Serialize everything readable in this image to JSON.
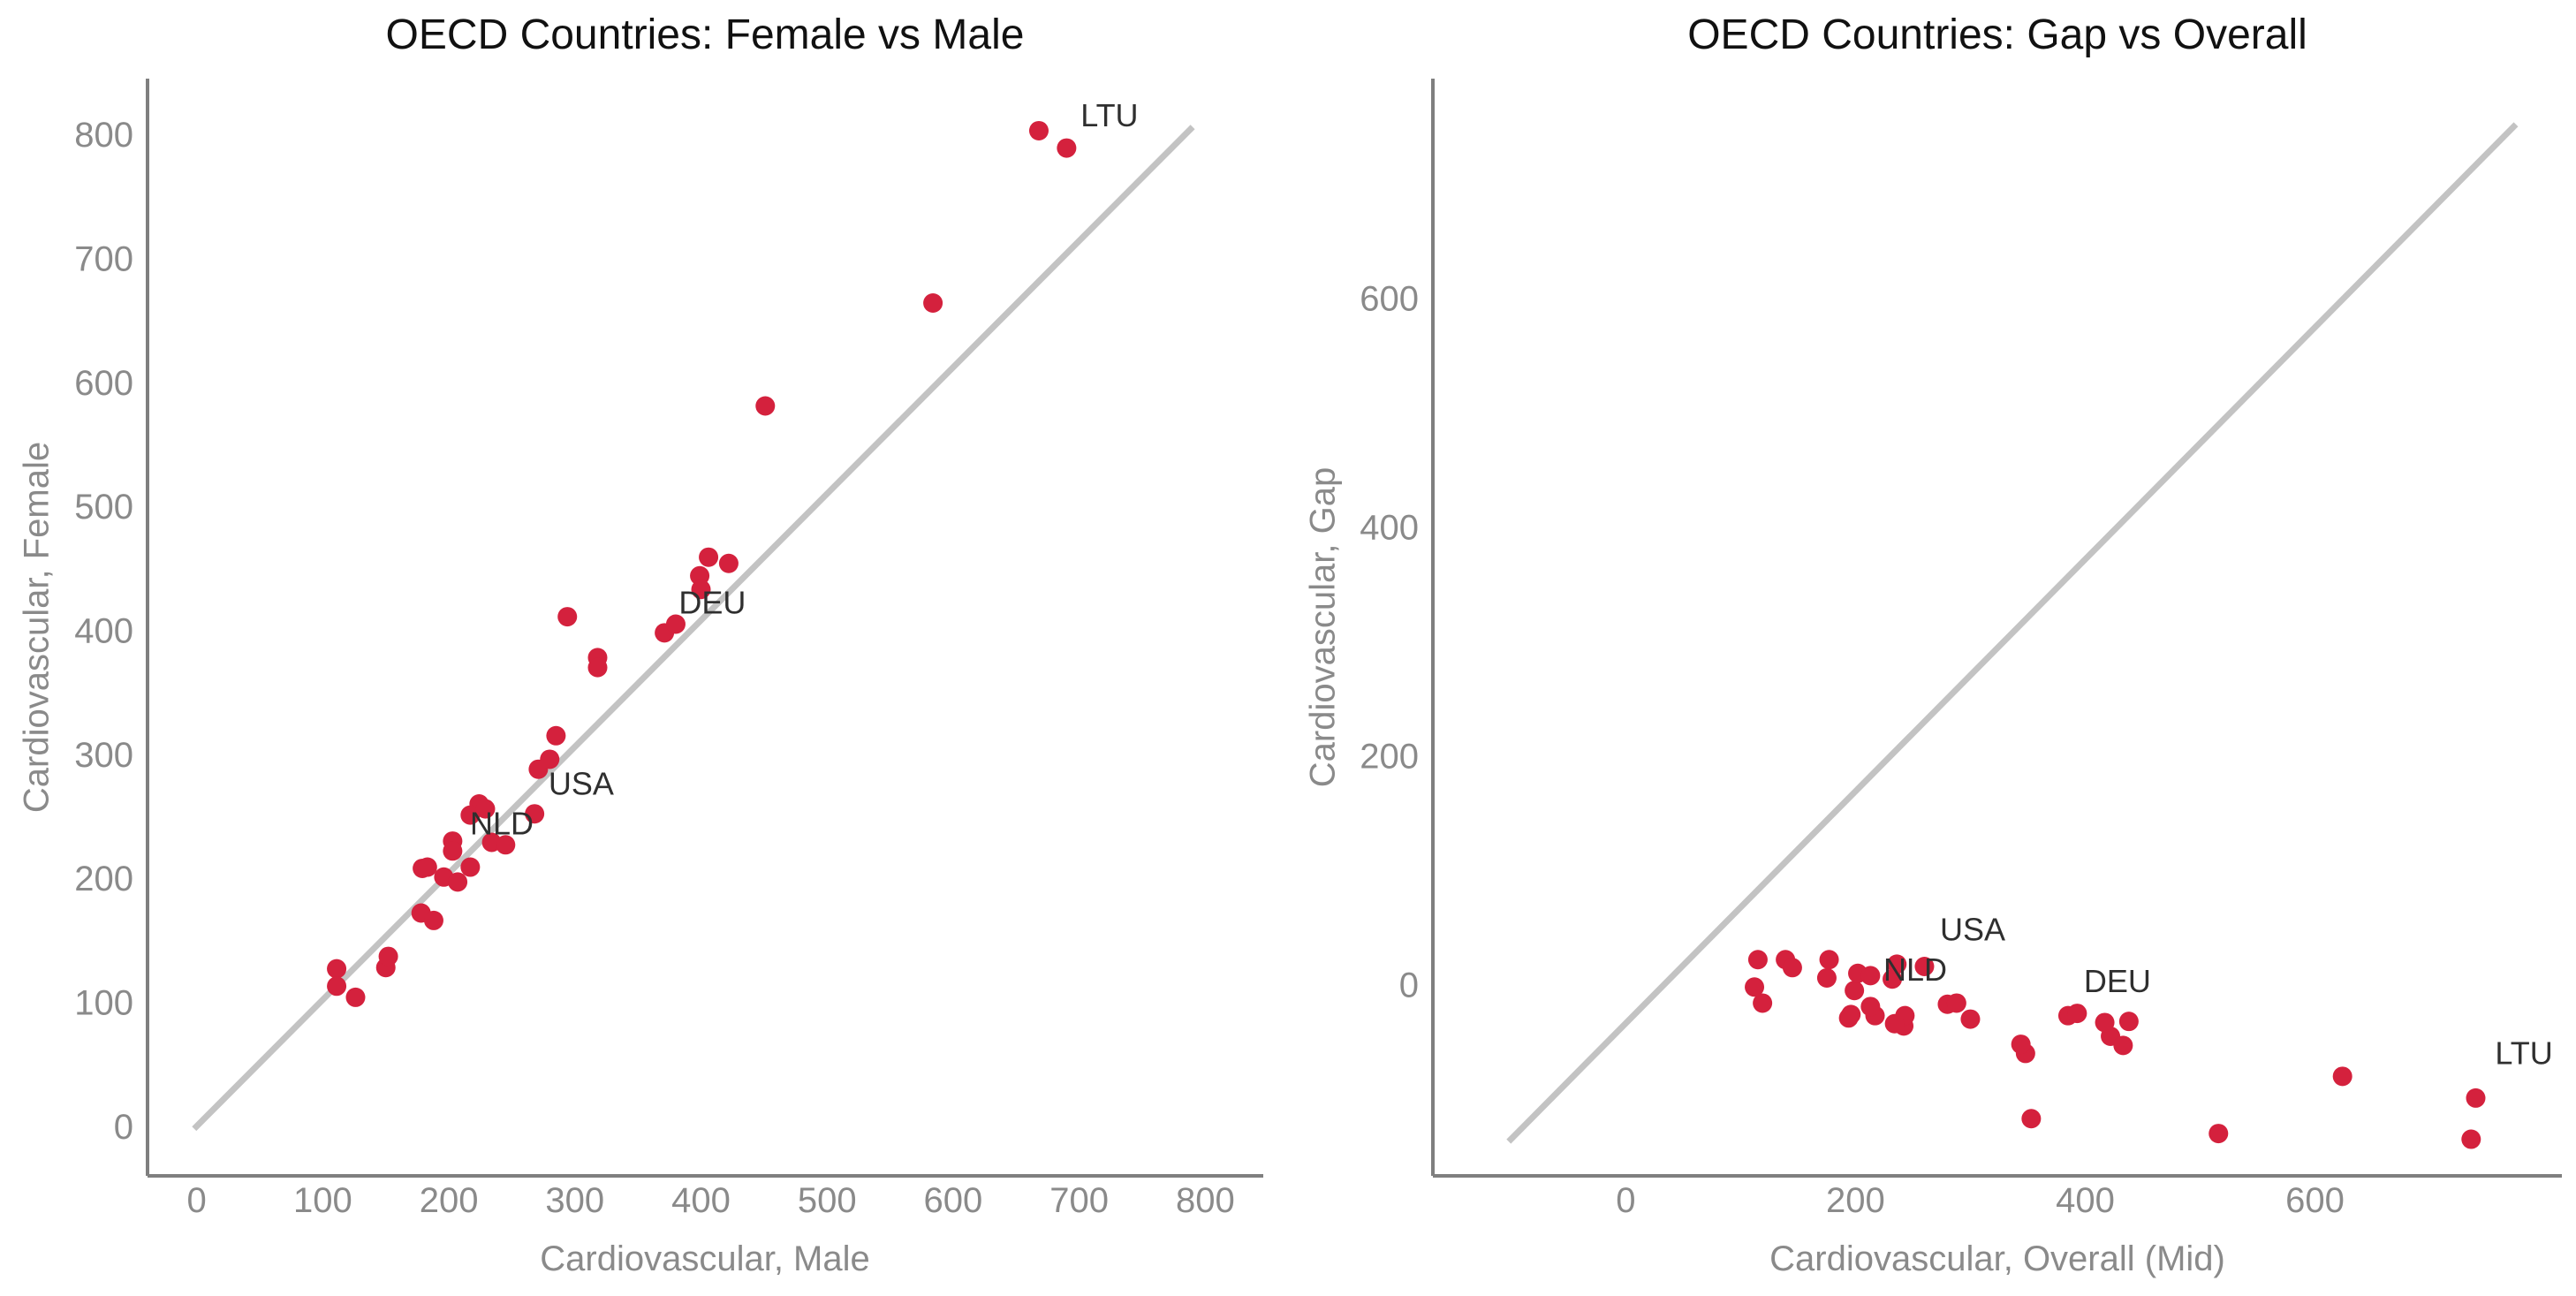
{
  "styles": {
    "point_color": "#d4213d",
    "refline_color": "#c3c3c3",
    "axis_color": "#7f7f7f",
    "tick_label_color": "#8a8a8a",
    "axis_label_color": "#8a8a8a",
    "title_color": "#111111",
    "annotation_color": "#2f2f2f"
  },
  "chart_data": [
    {
      "id": "female-vs-male",
      "type": "scatter",
      "title": "OECD Countries: Female vs Male",
      "xlabel": "Cardiovascular, Male",
      "ylabel": "Cardiovascular, Female",
      "xlim": [
        -39,
        846
      ],
      "ylim": [
        -40,
        845
      ],
      "xticks": [
        0,
        100,
        200,
        300,
        400,
        500,
        600,
        700,
        800
      ],
      "yticks": [
        0,
        100,
        200,
        300,
        400,
        500,
        600,
        700,
        800
      ],
      "grid": false,
      "legend": "none",
      "refline": {
        "x1": -2,
        "y1": -2,
        "x2": 790,
        "y2": 806
      },
      "points": [
        [
          111,
          127
        ],
        [
          111,
          113
        ],
        [
          126,
          104
        ],
        [
          150,
          128
        ],
        [
          152,
          137
        ],
        [
          178,
          172
        ],
        [
          188,
          166
        ],
        [
          179,
          208
        ],
        [
          183,
          209
        ],
        [
          196,
          201
        ],
        [
          207,
          197
        ],
        [
          217,
          209
        ],
        [
          203,
          230
        ],
        [
          203,
          222
        ],
        [
          224,
          260
        ],
        [
          229,
          256
        ],
        [
          217,
          251
        ],
        [
          234,
          229
        ],
        [
          245,
          227
        ],
        [
          268,
          252
        ],
        [
          271,
          288
        ],
        [
          280,
          296
        ],
        [
          285,
          315
        ],
        [
          294,
          411
        ],
        [
          318,
          378
        ],
        [
          318,
          370
        ],
        [
          371,
          398
        ],
        [
          380,
          405
        ],
        [
          399,
          444
        ],
        [
          400,
          433
        ],
        [
          406,
          459
        ],
        [
          422,
          454
        ],
        [
          451,
          581
        ],
        [
          584,
          664
        ],
        [
          668,
          803
        ],
        [
          690,
          789
        ]
      ],
      "annotations": [
        {
          "text": "LTU",
          "x": 724,
          "y": 815
        },
        {
          "text": "DEU",
          "x": 409,
          "y": 422
        },
        {
          "text": "USA",
          "x": 305,
          "y": 276
        },
        {
          "text": "NLD",
          "x": 242,
          "y": 244
        }
      ]
    },
    {
      "id": "gap-vs-overall",
      "type": "scatter",
      "title": "OECD Countries: Gap vs Overall",
      "xlabel": "Cardiovascular, Overall (Mid)",
      "ylabel": "Cardiovascular, Gap",
      "xlim": [
        -168,
        815
      ],
      "ylim": [
        -167,
        792
      ],
      "xticks": [
        0,
        200,
        400,
        600
      ],
      "yticks": [
        0,
        200,
        400,
        600
      ],
      "grid": false,
      "legend": "none",
      "refline": {
        "x1": -102,
        "y1": -137,
        "x2": 775,
        "y2": 752
      },
      "points": [
        [
          119,
          -16
        ],
        [
          112,
          -2
        ],
        [
          115,
          22
        ],
        [
          139,
          22
        ],
        [
          145,
          15
        ],
        [
          175,
          6
        ],
        [
          177,
          22
        ],
        [
          194,
          -29
        ],
        [
          196,
          -26
        ],
        [
          199,
          -5
        ],
        [
          202,
          10
        ],
        [
          213,
          8
        ],
        [
          217,
          -27
        ],
        [
          213,
          -19
        ],
        [
          242,
          -36
        ],
        [
          243,
          -27
        ],
        [
          234,
          -34
        ],
        [
          232,
          5
        ],
        [
          236,
          18
        ],
        [
          260,
          16
        ],
        [
          280,
          -17
        ],
        [
          288,
          -16
        ],
        [
          300,
          -30
        ],
        [
          353,
          -117
        ],
        [
          348,
          -60
        ],
        [
          344,
          -52
        ],
        [
          385,
          -27
        ],
        [
          393,
          -25
        ],
        [
          422,
          -45
        ],
        [
          417,
          -33
        ],
        [
          433,
          -53
        ],
        [
          438,
          -32
        ],
        [
          516,
          -130
        ],
        [
          624,
          -80
        ],
        [
          736,
          -135
        ],
        [
          740,
          -99
        ]
      ],
      "annotations": [
        {
          "text": "USA",
          "x": 302,
          "y": 48
        },
        {
          "text": "NLD",
          "x": 252,
          "y": 13
        },
        {
          "text": "DEU",
          "x": 428,
          "y": 3
        },
        {
          "text": "LTU",
          "x": 782,
          "y": -60
        }
      ]
    }
  ]
}
